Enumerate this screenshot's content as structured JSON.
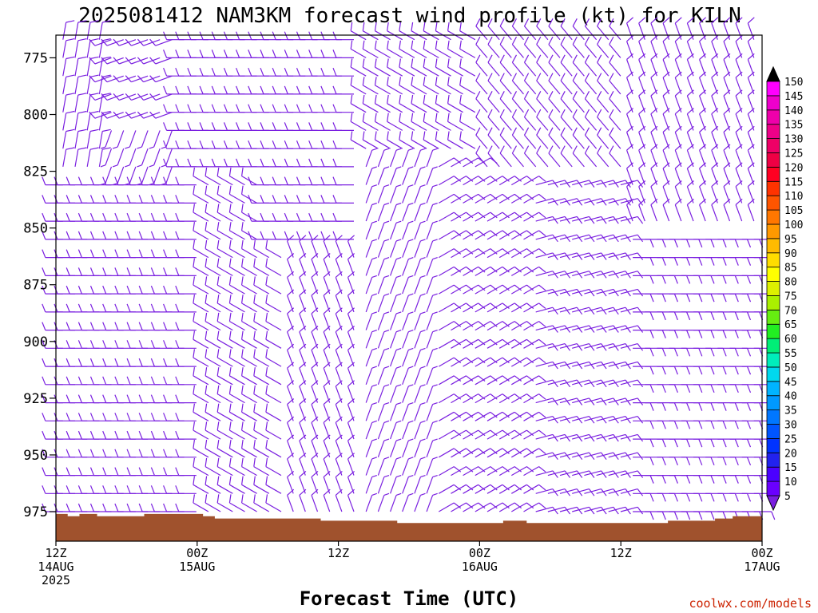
{
  "chart_data": {
    "type": "wind-profile",
    "title": "2025081412 NAM3KM forecast wind profile (kt) for KILN",
    "xlabel": "Forecast Time (UTC)",
    "credit": "coolwx.com/models",
    "y_axis": {
      "unit": "hPa",
      "inverted": true,
      "range": [
        765,
        988
      ],
      "ticks": [
        "775",
        "800",
        "825",
        "850",
        "875",
        "900",
        "925",
        "950",
        "975"
      ]
    },
    "x_axis": {
      "range_hours": [
        0,
        60
      ],
      "ticks": [
        {
          "hour": 0,
          "line1": "12Z",
          "line2": "14AUG",
          "line3": "2025"
        },
        {
          "hour": 12,
          "line1": "00Z",
          "line2": "15AUG",
          "line3": ""
        },
        {
          "hour": 24,
          "line1": "12Z",
          "line2": "",
          "line3": ""
        },
        {
          "hour": 36,
          "line1": "00Z",
          "line2": "16AUG",
          "line3": ""
        },
        {
          "hour": 48,
          "line1": "12Z",
          "line2": "",
          "line3": ""
        },
        {
          "hour": 60,
          "line1": "00Z",
          "line2": "17AUG",
          "line3": ""
        }
      ]
    },
    "barb_color": "#7a1fe0",
    "terrain_color": "#a0522d",
    "surface_pressure_hpa": [
      {
        "hour": 0,
        "p": 976
      },
      {
        "hour": 1,
        "p": 977
      },
      {
        "hour": 2,
        "p": 976
      },
      {
        "hour": 3.5,
        "p": 977
      },
      {
        "hour": 7.5,
        "p": 976
      },
      {
        "hour": 12.5,
        "p": 977
      },
      {
        "hour": 13.5,
        "p": 978
      },
      {
        "hour": 22.5,
        "p": 979
      },
      {
        "hour": 29,
        "p": 980
      },
      {
        "hour": 38,
        "p": 979
      },
      {
        "hour": 40,
        "p": 980
      },
      {
        "hour": 52,
        "p": 979
      },
      {
        "hour": 56,
        "p": 978
      },
      {
        "hour": 57.5,
        "p": 977
      },
      {
        "hour": 60,
        "p": 976
      }
    ],
    "wind_regimes": [
      {
        "hours": [
          0,
          4
        ],
        "p_top": 765,
        "p_bot": 830,
        "dir_deg": 10,
        "speed_kt": 10
      },
      {
        "hours": [
          4,
          10
        ],
        "p_top": 765,
        "p_bot": 800,
        "dir_deg": 250,
        "speed_kt": 10
      },
      {
        "hours": [
          4,
          10
        ],
        "p_top": 800,
        "p_bot": 845,
        "dir_deg": 200,
        "speed_kt": 5
      },
      {
        "hours": [
          0,
          12
        ],
        "p_top": 830,
        "p_bot": 975,
        "dir_deg": 270,
        "speed_kt": 10
      },
      {
        "hours": [
          10,
          18
        ],
        "p_top": 765,
        "p_bot": 830,
        "dir_deg": 270,
        "speed_kt": 10
      },
      {
        "hours": [
          12,
          20
        ],
        "p_top": 830,
        "p_bot": 975,
        "dir_deg": 300,
        "speed_kt": 10
      },
      {
        "hours": [
          18,
          26
        ],
        "p_top": 765,
        "p_bot": 860,
        "dir_deg": 270,
        "speed_kt": 10
      },
      {
        "hours": [
          20,
          26
        ],
        "p_top": 860,
        "p_bot": 975,
        "dir_deg": 340,
        "speed_kt": 10
      },
      {
        "hours": [
          26,
          36
        ],
        "p_top": 765,
        "p_bot": 820,
        "dir_deg": 300,
        "speed_kt": 10
      },
      {
        "hours": [
          26,
          32
        ],
        "p_top": 820,
        "p_bot": 975,
        "dir_deg": 20,
        "speed_kt": 5
      },
      {
        "hours": [
          32,
          40
        ],
        "p_top": 820,
        "p_bot": 975,
        "dir_deg": 60,
        "speed_kt": 10
      },
      {
        "hours": [
          36,
          48
        ],
        "p_top": 765,
        "p_bot": 830,
        "dir_deg": 320,
        "speed_kt": 10
      },
      {
        "hours": [
          40,
          48
        ],
        "p_top": 830,
        "p_bot": 975,
        "dir_deg": 75,
        "speed_kt": 10
      },
      {
        "hours": [
          48,
          60
        ],
        "p_top": 765,
        "p_bot": 850,
        "dir_deg": 340,
        "speed_kt": 10
      },
      {
        "hours": [
          48,
          60
        ],
        "p_top": 850,
        "p_bot": 975,
        "dir_deg": 90,
        "speed_kt": 10
      }
    ],
    "colorbar": {
      "unit": "kt",
      "levels": [
        5,
        10,
        15,
        20,
        25,
        30,
        35,
        40,
        45,
        50,
        55,
        60,
        65,
        70,
        75,
        80,
        85,
        90,
        95,
        100,
        105,
        110,
        115,
        120,
        125,
        130,
        135,
        140,
        145,
        150
      ],
      "colors": [
        "#7a1fe0",
        "#6a00ff",
        "#4b00ff",
        "#2222ee",
        "#0033ff",
        "#0055ff",
        "#0077ff",
        "#0099ff",
        "#00b4ff",
        "#00d8ee",
        "#00eebb",
        "#00ee77",
        "#22ee22",
        "#66ee11",
        "#aaf000",
        "#ddf000",
        "#ffff00",
        "#ffdd00",
        "#ffbb00",
        "#ff9900",
        "#ff7700",
        "#ff5500",
        "#ff3300",
        "#ff0022",
        "#ee0044",
        "#ee0066",
        "#ee0088",
        "#ee00aa",
        "#ee00cc",
        "#ff00ff"
      ]
    }
  }
}
